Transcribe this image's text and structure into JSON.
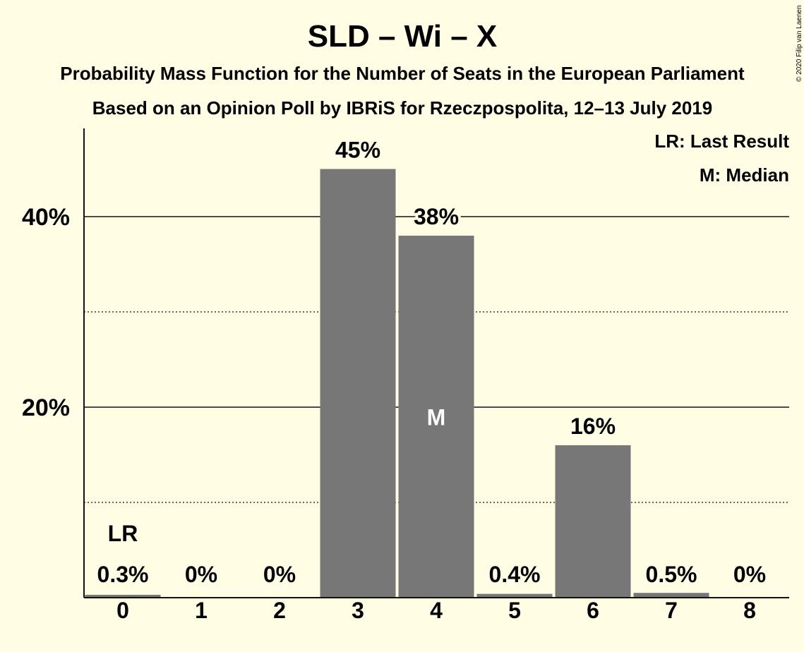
{
  "chart_data": {
    "type": "bar",
    "title": "SLD – Wi – X",
    "subtitle1": "Probability Mass Function for the Number of Seats in the European Parliament",
    "subtitle2": "Based on an Opinion Poll by IBRiS for Rzeczpospolita, 12–13 July 2019",
    "categories": [
      "0",
      "1",
      "2",
      "3",
      "4",
      "5",
      "6",
      "7",
      "8"
    ],
    "values": [
      0.3,
      0,
      0,
      45,
      38,
      0.4,
      16,
      0.5,
      0
    ],
    "value_labels": [
      "0.3%",
      "0%",
      "0%",
      "45%",
      "38%",
      "0.4%",
      "16%",
      "0.5%",
      "0%"
    ],
    "ylim": [
      0,
      49
    ],
    "yticks": [
      {
        "value": 20,
        "label": "20%"
      },
      {
        "value": 40,
        "label": "40%"
      }
    ],
    "minor_gridlines": [
      10,
      30
    ],
    "last_result_index": 0,
    "last_result_marker": "LR",
    "median_index": 4,
    "median_marker": "M",
    "legend": [
      "LR: Last Result",
      "M: Median"
    ],
    "legend_position": "top-right",
    "bar_color": "#777777",
    "background_color": "#fffde3"
  },
  "copyright": "© 2020 Filip van Laenen"
}
